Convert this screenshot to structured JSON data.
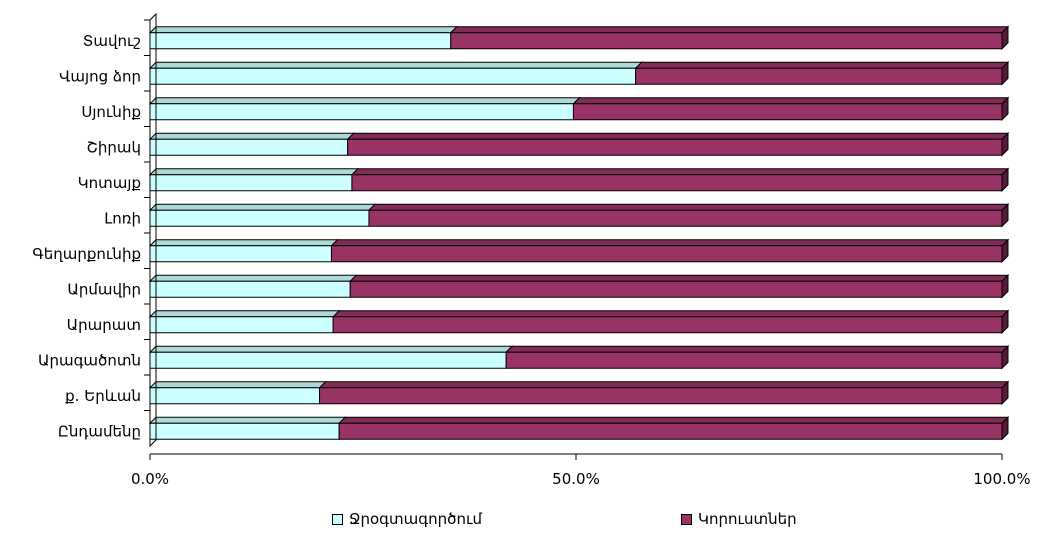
{
  "chart_data": {
    "type": "bar",
    "orientation": "horizontal",
    "stacked": "percent",
    "categories": [
      "Տավուշ",
      "Վայոց ձոր",
      "Սյունիք",
      "Շիրակ",
      "Կոտայք",
      "Լոռի",
      "Գեղարքունիք",
      "Արմավիր",
      "Արարատ",
      "Արագածոտն",
      "ք. Երևան",
      "Ընդամենը"
    ],
    "series": [
      {
        "name": "Ջրօգտագործում",
        "color": "#ccffff",
        "values": [
          35.3,
          57.0,
          49.7,
          23.2,
          23.7,
          25.7,
          21.3,
          23.5,
          21.5,
          41.8,
          19.9,
          22.2
        ]
      },
      {
        "name": "Կորուստներ",
        "color": "#993366",
        "values": [
          64.7,
          43.0,
          50.3,
          76.8,
          76.3,
          74.3,
          78.7,
          76.5,
          78.5,
          58.2,
          80.1,
          77.8
        ]
      }
    ],
    "x_ticks": [
      "0.0%",
      "50.0%",
      "100.0%"
    ],
    "xlim": [
      0,
      100
    ],
    "grid": false,
    "legend_position": "bottom"
  }
}
